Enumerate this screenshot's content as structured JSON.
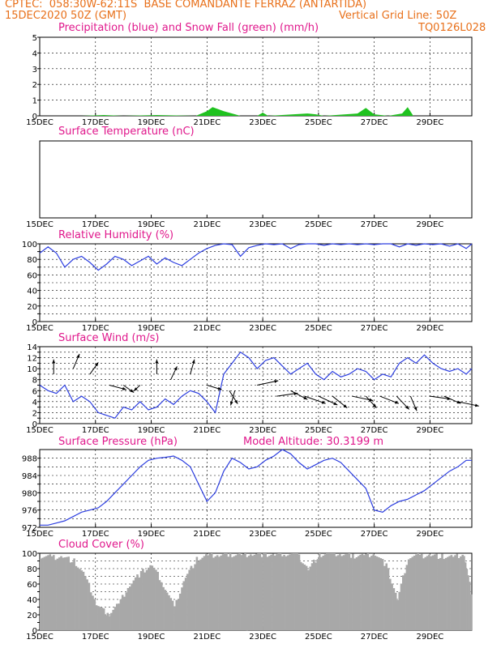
{
  "header": {
    "line1_left": "CPTEC:  058:30W-62:11S  BASE COMANDANTE FERRAZ (ANTARTIDA)",
    "line2_left": "15DEC2020 50Z (GMT)",
    "line2_right": "Vertical Grid Line: 50Z",
    "line3_right": "TQ0126L028"
  },
  "panels": {
    "precip_title": "Precipitation (blue) and Snow Fall (green) (mm/h)",
    "temp_title": "Surface Temperature (nC)",
    "rh_title": "Relative Humidity (%)",
    "wind_title": "Surface Wind (m/s)",
    "pres_title": "Surface Pressure (hPa)",
    "pres_subtitle": "Model Altitude: 30.3199 m",
    "cloud_title": "Cloud Cover (%)"
  },
  "colors": {
    "header": "#e8701a",
    "title": "#e0188c",
    "line": "#2c3ee0",
    "snow": "#1fc21f",
    "cloud": "#a8a8a8"
  },
  "chart_data": [
    {
      "type": "area",
      "id": "precip",
      "title": "Precipitation (blue) and Snow Fall (green) (mm/h)",
      "x_ticks": [
        "15DEC",
        "17DEC",
        "19DEC",
        "21DEC",
        "23DEC",
        "25DEC",
        "27DEC",
        "29DEC"
      ],
      "xlim": [
        0,
        15.5
      ],
      "ylim": [
        0,
        5
      ],
      "y_ticks": [
        0,
        1,
        2,
        3,
        4,
        5
      ],
      "grid": true,
      "series": [
        {
          "name": "Snow Fall",
          "x": [
            0,
            0.8,
            1.5,
            2.3,
            3.0,
            4.2,
            5.6,
            6.0,
            6.2,
            6.6,
            7.2,
            7.8,
            8.0,
            8.2,
            9.6,
            9.9,
            10.2,
            11.4,
            11.7,
            12.0,
            12.5,
            13.0,
            13.2,
            13.4,
            14.2,
            15.5
          ],
          "values": [
            0,
            0,
            0,
            0.05,
            0,
            0.05,
            0,
            0.3,
            0.55,
            0.3,
            0,
            0,
            0.2,
            0,
            0.15,
            0.1,
            0,
            0.15,
            0.5,
            0.1,
            0,
            0.15,
            0.55,
            0,
            0,
            0
          ]
        }
      ]
    },
    {
      "type": "line",
      "id": "temperature",
      "title": "Surface Temperature (nC)",
      "x_ticks": [
        "15DEC",
        "17DEC",
        "19DEC",
        "21DEC",
        "23DEC",
        "25DEC",
        "27DEC",
        "29DEC"
      ],
      "xlim": [
        0,
        15.5
      ],
      "series": []
    },
    {
      "type": "line",
      "id": "rh",
      "title": "Relative Humidity (%)",
      "x_ticks": [
        "15DEC",
        "17DEC",
        "19DEC",
        "21DEC",
        "23DEC",
        "25DEC",
        "27DEC",
        "29DEC"
      ],
      "xlim": [
        0,
        15.5
      ],
      "ylim": [
        0,
        100
      ],
      "y_ticks": [
        0,
        10,
        20,
        30,
        40,
        50,
        60,
        70,
        80,
        90,
        100
      ],
      "y_tick_labels": [
        "0",
        "",
        "20",
        "",
        "40",
        "",
        "60",
        "",
        "80",
        "",
        "100"
      ],
      "series": [
        {
          "name": "Relative Humidity",
          "x": [
            0,
            0.3,
            0.6,
            0.9,
            1.2,
            1.5,
            1.8,
            2.1,
            2.4,
            2.7,
            3.0,
            3.3,
            3.6,
            3.9,
            4.2,
            4.5,
            4.8,
            5.1,
            5.4,
            5.7,
            6.0,
            6.3,
            6.6,
            6.9,
            7.2,
            7.5,
            7.8,
            8.1,
            8.4,
            8.7,
            9.0,
            9.3,
            9.6,
            9.9,
            10.2,
            10.5,
            10.8,
            11.1,
            11.4,
            11.7,
            12.0,
            12.3,
            12.6,
            12.9,
            13.2,
            13.5,
            13.8,
            14.1,
            14.4,
            14.7,
            15.0,
            15.3,
            15.5
          ],
          "values": [
            88,
            96,
            88,
            70,
            80,
            84,
            76,
            66,
            74,
            84,
            80,
            72,
            78,
            84,
            74,
            82,
            76,
            72,
            80,
            88,
            94,
            98,
            100,
            99,
            84,
            95,
            98,
            100,
            99,
            100,
            94,
            99,
            100,
            100,
            98,
            100,
            99,
            100,
            99,
            100,
            99,
            100,
            100,
            96,
            100,
            98,
            100,
            99,
            100,
            97,
            100,
            94,
            100
          ]
        }
      ]
    },
    {
      "type": "line",
      "id": "wind",
      "title": "Surface Wind (m/s)",
      "x_ticks": [
        "15DEC",
        "17DEC",
        "19DEC",
        "21DEC",
        "23DEC",
        "25DEC",
        "27DEC",
        "29DEC"
      ],
      "xlim": [
        0,
        15.5
      ],
      "ylim": [
        0,
        14
      ],
      "y_ticks": [
        0,
        1,
        2,
        3,
        4,
        5,
        6,
        7,
        8,
        9,
        10,
        11,
        12,
        13,
        14
      ],
      "y_tick_labels": [
        "0",
        "",
        "2",
        "",
        "4",
        "",
        "6",
        "",
        "8",
        "",
        "10",
        "",
        "12",
        "",
        "14"
      ],
      "series": [
        {
          "name": "Wind Speed",
          "x": [
            0,
            0.3,
            0.6,
            0.9,
            1.2,
            1.5,
            1.8,
            2.1,
            2.4,
            2.7,
            3.0,
            3.3,
            3.6,
            3.9,
            4.2,
            4.5,
            4.8,
            5.1,
            5.4,
            5.7,
            6.0,
            6.3,
            6.6,
            6.9,
            7.2,
            7.5,
            7.8,
            8.1,
            8.4,
            8.7,
            9.0,
            9.3,
            9.6,
            9.9,
            10.2,
            10.5,
            10.8,
            11.1,
            11.4,
            11.7,
            12.0,
            12.3,
            12.6,
            12.9,
            13.2,
            13.5,
            13.8,
            14.1,
            14.4,
            14.7,
            15.0,
            15.3,
            15.5
          ],
          "values": [
            7,
            6,
            5.5,
            7,
            4,
            5,
            4,
            2,
            1.5,
            1,
            3,
            2.5,
            4,
            2.5,
            3,
            4.5,
            3.5,
            5,
            6,
            5.5,
            4,
            2,
            9,
            11,
            13,
            12,
            10,
            11.5,
            12,
            10.5,
            9,
            10,
            11,
            9,
            8,
            9.5,
            8.5,
            9,
            10,
            9.5,
            8,
            9,
            8.5,
            11,
            12,
            11,
            12.5,
            11,
            10,
            9.5,
            10,
            9,
            10
          ]
        },
        {
          "name": "Wind Barbs",
          "x": [
            0.5,
            1.2,
            1.8,
            2.5,
            3.0,
            3.6,
            4.2,
            4.7,
            5.4,
            6.0,
            6.8,
            7.0,
            7.8,
            8.5,
            9.0,
            9.5,
            10.0,
            10.5,
            11.2,
            11.7,
            12.2,
            12.8,
            13.3,
            14.0,
            14.5,
            15.0
          ],
          "values": [
            9,
            10,
            9,
            7,
            7,
            7,
            9,
            8,
            9,
            7,
            6,
            6,
            7,
            5,
            6,
            5,
            5,
            5,
            5,
            5,
            5,
            5,
            5,
            5,
            5,
            4
          ]
        }
      ]
    },
    {
      "type": "line",
      "id": "pressure",
      "title": "Surface Pressure (hPa)",
      "x_ticks": [
        "15DEC",
        "17DEC",
        "19DEC",
        "21DEC",
        "23DEC",
        "25DEC",
        "27DEC",
        "29DEC"
      ],
      "xlim": [
        0,
        15.5
      ],
      "ylim": [
        972,
        990
      ],
      "y_ticks": [
        972,
        974,
        976,
        978,
        980,
        982,
        984,
        986,
        988
      ],
      "y_tick_labels": [
        "972",
        "",
        "976",
        "",
        "980",
        "",
        "984",
        "",
        "988"
      ],
      "series": [
        {
          "name": "Surface Pressure",
          "x": [
            0,
            0.3,
            0.6,
            0.9,
            1.2,
            1.5,
            1.8,
            2.1,
            2.4,
            2.7,
            3.0,
            3.3,
            3.6,
            3.9,
            4.2,
            4.5,
            4.8,
            5.1,
            5.4,
            5.7,
            6.0,
            6.3,
            6.6,
            6.9,
            7.2,
            7.5,
            7.8,
            8.1,
            8.4,
            8.7,
            9.0,
            9.3,
            9.6,
            9.9,
            10.2,
            10.5,
            10.8,
            11.1,
            11.4,
            11.7,
            12.0,
            12.3,
            12.6,
            12.9,
            13.2,
            13.5,
            13.8,
            14.1,
            14.4,
            14.7,
            15.0,
            15.3,
            15.5
          ],
          "values": [
            972.5,
            972.5,
            973,
            973.5,
            974.5,
            975.5,
            976,
            976.5,
            978,
            980,
            982,
            984,
            986,
            987.5,
            988,
            988.2,
            988.5,
            987.5,
            986,
            982,
            978,
            980,
            985,
            988,
            987,
            985.5,
            986,
            987.5,
            988.5,
            990,
            989,
            987,
            985.5,
            986.5,
            987.5,
            988,
            987,
            985,
            983,
            981,
            976,
            975.5,
            977,
            978,
            978.5,
            979.5,
            980.5,
            982,
            983.5,
            985,
            986,
            987.5,
            987.5
          ]
        }
      ]
    },
    {
      "type": "area",
      "id": "cloud",
      "title": "Cloud Cover (%)",
      "x_ticks": [
        "15DEC",
        "17DEC",
        "19DEC",
        "21DEC",
        "23DEC",
        "25DEC",
        "27DEC",
        "29DEC"
      ],
      "xlim": [
        0,
        15.5
      ],
      "ylim": [
        0,
        100
      ],
      "y_ticks": [
        0,
        10,
        20,
        30,
        40,
        50,
        60,
        70,
        80,
        90,
        100
      ],
      "y_tick_labels": [
        "0",
        "",
        "20",
        "",
        "40",
        "",
        "60",
        "",
        "80",
        "",
        "100"
      ],
      "series": [
        {
          "name": "Cloud Cover",
          "x": [
            0,
            0.4,
            0.8,
            1.2,
            1.6,
            2.0,
            2.4,
            2.8,
            3.2,
            3.6,
            4.0,
            4.4,
            4.8,
            5.2,
            5.6,
            6.0,
            6.4,
            6.8,
            7.2,
            7.6,
            8.0,
            8.4,
            8.8,
            9.2,
            9.6,
            10.0,
            10.4,
            10.8,
            11.2,
            11.6,
            12.0,
            12.4,
            12.8,
            13.2,
            13.6,
            14.0,
            14.4,
            14.8,
            15.2,
            15.5
          ],
          "values": [
            97,
            95,
            96,
            90,
            70,
            35,
            20,
            35,
            60,
            75,
            85,
            60,
            30,
            70,
            92,
            97,
            98,
            99,
            98,
            100,
            99,
            98,
            100,
            99,
            80,
            98,
            100,
            99,
            97,
            98,
            100,
            85,
            40,
            96,
            97,
            98,
            96,
            95,
            99,
            40
          ]
        }
      ]
    }
  ]
}
